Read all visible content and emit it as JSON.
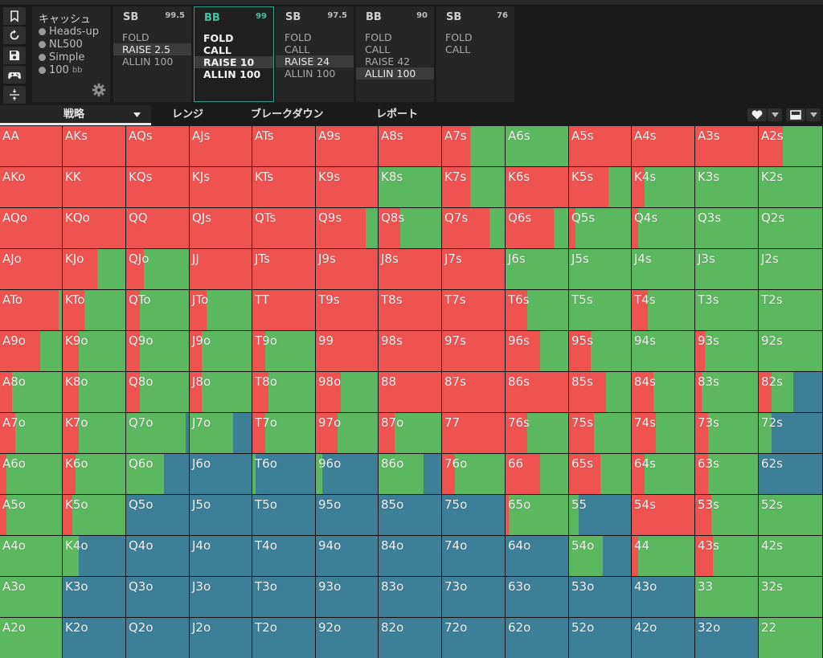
{
  "colors": {
    "raise": "#ef5350",
    "call": "#5cb85f",
    "fold": "#3c7f97"
  },
  "sidebar": {
    "icons": [
      "bookmark-icon",
      "refresh-icon",
      "save-icon",
      "gamepad-icon",
      "compress-icon"
    ]
  },
  "info": {
    "title": "キャッシュ",
    "rows": [
      {
        "text": "Heads-up"
      },
      {
        "text": "NL500"
      },
      {
        "text": "Simple"
      }
    ],
    "stack_value": "100",
    "stack_unit": "bb"
  },
  "action_panels": [
    {
      "player": "SB",
      "stack": "99.5",
      "actions": [
        "FOLD",
        "RAISE 2.5",
        "ALLIN 100"
      ],
      "selected": 1
    },
    {
      "player": "BB",
      "stack": "99",
      "actions": [
        "FOLD",
        "CALL",
        "RAISE 10",
        "ALLIN 100"
      ],
      "selected": 2
    },
    {
      "player": "SB",
      "stack": "97.5",
      "actions": [
        "FOLD",
        "CALL",
        "RAISE 24",
        "ALLIN 100"
      ],
      "selected": 2
    },
    {
      "player": "BB",
      "stack": "90",
      "actions": [
        "FOLD",
        "CALL",
        "RAISE 42",
        "ALLIN 100"
      ],
      "selected": 3
    },
    {
      "player": "SB",
      "stack": "76",
      "actions": [
        "FOLD",
        "CALL"
      ],
      "selected": -1
    }
  ],
  "tabs": [
    "戦略",
    "レンジ",
    "ブレークダウン",
    "レポート"
  ],
  "tab_active": 0,
  "toolbar_icons": [
    "heart-icon",
    "chevron-down-icon",
    "monitor-icon",
    "chevron-down-icon"
  ],
  "hands": [
    [
      "AA",
      "AKs",
      "AQs",
      "AJs",
      "ATs",
      "A9s",
      "A8s",
      "A7s",
      "A6s",
      "A5s",
      "A4s",
      "A3s",
      "A2s"
    ],
    [
      "AKo",
      "KK",
      "KQs",
      "KJs",
      "KTs",
      "K9s",
      "K8s",
      "K7s",
      "K6s",
      "K5s",
      "K4s",
      "K3s",
      "K2s"
    ],
    [
      "AQo",
      "KQo",
      "QQ",
      "QJs",
      "QTs",
      "Q9s",
      "Q8s",
      "Q7s",
      "Q6s",
      "Q5s",
      "Q4s",
      "Q3s",
      "Q2s"
    ],
    [
      "AJo",
      "KJo",
      "QJo",
      "JJ",
      "JTs",
      "J9s",
      "J8s",
      "J7s",
      "J6s",
      "J5s",
      "J4s",
      "J3s",
      "J2s"
    ],
    [
      "ATo",
      "KTo",
      "QTo",
      "JTo",
      "TT",
      "T9s",
      "T8s",
      "T7s",
      "T6s",
      "T5s",
      "T4s",
      "T3s",
      "T2s"
    ],
    [
      "A9o",
      "K9o",
      "Q9o",
      "J9o",
      "T9o",
      "99",
      "98s",
      "97s",
      "96s",
      "95s",
      "94s",
      "93s",
      "92s"
    ],
    [
      "A8o",
      "K8o",
      "Q8o",
      "J8o",
      "T8o",
      "98o",
      "88",
      "87s",
      "86s",
      "85s",
      "84s",
      "83s",
      "82s"
    ],
    [
      "A7o",
      "K7o",
      "Q7o",
      "J7o",
      "T7o",
      "97o",
      "87o",
      "77",
      "76s",
      "75s",
      "74s",
      "73s",
      "72s"
    ],
    [
      "A6o",
      "K6o",
      "Q6o",
      "J6o",
      "T6o",
      "96o",
      "86o",
      "76o",
      "66",
      "65s",
      "64s",
      "63s",
      "62s"
    ],
    [
      "A5o",
      "K5o",
      "Q5o",
      "J5o",
      "T5o",
      "95o",
      "85o",
      "75o",
      "65o",
      "55",
      "54s",
      "53s",
      "52s"
    ],
    [
      "A4o",
      "K4o",
      "Q4o",
      "J4o",
      "T4o",
      "94o",
      "84o",
      "74o",
      "64o",
      "54o",
      "44",
      "43s",
      "42s"
    ],
    [
      "A3o",
      "K3o",
      "Q3o",
      "J3o",
      "T3o",
      "93o",
      "83o",
      "73o",
      "63o",
      "53o",
      "43o",
      "33",
      "32s"
    ],
    [
      "A2o",
      "K2o",
      "Q2o",
      "J2o",
      "T2o",
      "92o",
      "82o",
      "72o",
      "62o",
      "52o",
      "42o",
      "32o",
      "22"
    ]
  ],
  "strategy": [
    [
      [
        1,
        0
      ],
      [
        1,
        0
      ],
      [
        1,
        0
      ],
      [
        1,
        0
      ],
      [
        1,
        0
      ],
      [
        1,
        0
      ],
      [
        1,
        0
      ],
      [
        0.45,
        0.55
      ],
      [
        0,
        1
      ],
      [
        1,
        0
      ],
      [
        1,
        0
      ],
      [
        1,
        0
      ],
      [
        0.38,
        0.62
      ]
    ],
    [
      [
        1,
        0
      ],
      [
        1,
        0
      ],
      [
        1,
        0
      ],
      [
        1,
        0
      ],
      [
        1,
        0
      ],
      [
        1,
        0
      ],
      [
        0,
        1
      ],
      [
        0.45,
        0.55
      ],
      [
        1,
        0
      ],
      [
        0.63,
        0.37
      ],
      [
        0.2,
        0.8
      ],
      [
        0,
        1
      ],
      [
        0,
        1
      ]
    ],
    [
      [
        1,
        0
      ],
      [
        1,
        0
      ],
      [
        1,
        0
      ],
      [
        1,
        0
      ],
      [
        1,
        0
      ],
      [
        0.8,
        0.2
      ],
      [
        0.35,
        0.65
      ],
      [
        0.75,
        0.25
      ],
      [
        0.77,
        0.23
      ],
      [
        0.1,
        0.9
      ],
      [
        0.1,
        0.9
      ],
      [
        0,
        1
      ],
      [
        0,
        1
      ]
    ],
    [
      [
        1,
        0
      ],
      [
        0.55,
        0.45
      ],
      [
        0.28,
        0.72
      ],
      [
        1,
        0
      ],
      [
        1,
        0
      ],
      [
        1,
        0
      ],
      [
        1,
        0
      ],
      [
        1,
        0
      ],
      [
        0,
        1
      ],
      [
        0,
        1
      ],
      [
        0,
        1
      ],
      [
        0,
        1
      ],
      [
        0,
        1
      ]
    ],
    [
      [
        0.95,
        0.05
      ],
      [
        0.35,
        0.65
      ],
      [
        0.22,
        0.78
      ],
      [
        0.27,
        0.73
      ],
      [
        1,
        0
      ],
      [
        1,
        0
      ],
      [
        1,
        0
      ],
      [
        1,
        0
      ],
      [
        0.35,
        0.65
      ],
      [
        0,
        1
      ],
      [
        0.25,
        0.75
      ],
      [
        0,
        1
      ],
      [
        0,
        1
      ]
    ],
    [
      [
        0.65,
        0.35
      ],
      [
        0.25,
        0.75
      ],
      [
        0.22,
        0.78
      ],
      [
        0.2,
        0.8
      ],
      [
        0.2,
        0.8
      ],
      [
        1,
        0
      ],
      [
        1,
        0
      ],
      [
        1,
        0
      ],
      [
        0.55,
        0.45
      ],
      [
        0.35,
        0.65
      ],
      [
        0,
        1
      ],
      [
        0.15,
        0.85
      ],
      [
        0,
        1
      ]
    ],
    [
      [
        0.2,
        0.8
      ],
      [
        0.25,
        0.75
      ],
      [
        0.22,
        0.78
      ],
      [
        0.2,
        0.8
      ],
      [
        0.25,
        0.75
      ],
      [
        0.4,
        0.6
      ],
      [
        1,
        0
      ],
      [
        1,
        0
      ],
      [
        1,
        0
      ],
      [
        0.6,
        0.4
      ],
      [
        0.35,
        0.65
      ],
      [
        0.1,
        0.9
      ],
      [
        0.2,
        0.35,
        0.45
      ]
    ],
    [
      [
        0.25,
        0.75
      ],
      [
        0.25,
        0.75
      ],
      [
        0,
        0.95,
        0.05
      ],
      [
        0,
        0.7,
        0.3
      ],
      [
        0.2,
        0.8
      ],
      [
        0.35,
        0.65
      ],
      [
        0.25,
        0.75
      ],
      [
        1,
        0
      ],
      [
        0.35,
        0.65
      ],
      [
        0.4,
        0.6
      ],
      [
        0.38,
        0.62
      ],
      [
        0.2,
        0.8
      ],
      [
        0,
        0.2,
        0.8
      ]
    ],
    [
      [
        0.1,
        0.9
      ],
      [
        0.2,
        0.8
      ],
      [
        0,
        0.6,
        0.4
      ],
      [
        0,
        0,
        1
      ],
      [
        0,
        0.05,
        0.95
      ],
      [
        0,
        0.1,
        0.9
      ],
      [
        0,
        0.72,
        0.28
      ],
      [
        0.2,
        0.8
      ],
      [
        0.55,
        0.45
      ],
      [
        0.5,
        0.5
      ],
      [
        0.2,
        0.8
      ],
      [
        0.2,
        0.8
      ],
      [
        0,
        0,
        1
      ]
    ],
    [
      [
        0.1,
        0.9
      ],
      [
        0.15,
        0.85
      ],
      [
        0,
        0,
        1
      ],
      [
        0,
        0,
        1
      ],
      [
        0,
        0,
        1
      ],
      [
        0,
        0,
        1
      ],
      [
        0,
        0,
        1
      ],
      [
        0,
        0,
        1
      ],
      [
        0.05,
        0.95
      ],
      [
        0,
        0.15,
        0.85
      ],
      [
        1,
        0
      ],
      [
        0.25,
        0.75
      ],
      [
        0,
        1
      ]
    ],
    [
      [
        0,
        1
      ],
      [
        0,
        0.25,
        0.75
      ],
      [
        0,
        0,
        1
      ],
      [
        0,
        0,
        1
      ],
      [
        0,
        0,
        1
      ],
      [
        0,
        0,
        1
      ],
      [
        0,
        0,
        1
      ],
      [
        0,
        0,
        1
      ],
      [
        0,
        0,
        1
      ],
      [
        0,
        0.55,
        0.45
      ],
      [
        0.1,
        0.9
      ],
      [
        0.28,
        0.72
      ],
      [
        0,
        1
      ]
    ],
    [
      [
        0,
        1
      ],
      [
        0,
        0,
        1
      ],
      [
        0,
        0,
        1
      ],
      [
        0,
        0,
        1
      ],
      [
        0,
        0,
        1
      ],
      [
        0,
        0,
        1
      ],
      [
        0,
        0,
        1
      ],
      [
        0,
        0,
        1
      ],
      [
        0,
        0,
        1
      ],
      [
        0,
        0,
        1
      ],
      [
        0,
        0,
        1
      ],
      [
        0,
        1
      ],
      [
        0,
        1
      ]
    ],
    [
      [
        0,
        1
      ],
      [
        0,
        0,
        1
      ],
      [
        0,
        0,
        1
      ],
      [
        0,
        0,
        1
      ],
      [
        0,
        0,
        1
      ],
      [
        0,
        0,
        1
      ],
      [
        0,
        0,
        1
      ],
      [
        0,
        0,
        1
      ],
      [
        0,
        0,
        1
      ],
      [
        0,
        0,
        1
      ],
      [
        0,
        0,
        1
      ],
      [
        0,
        0,
        1
      ],
      [
        0,
        1
      ]
    ]
  ]
}
